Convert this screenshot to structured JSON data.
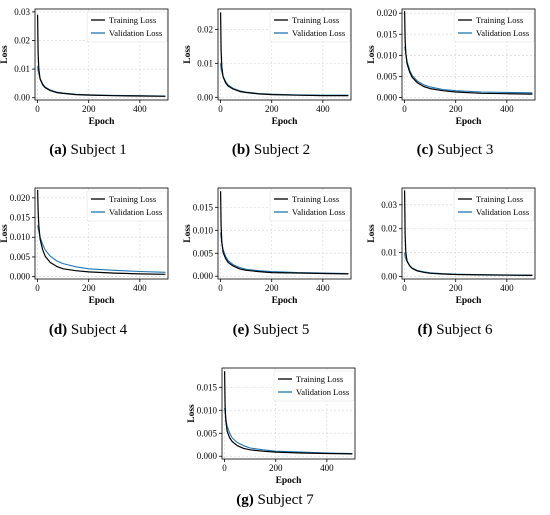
{
  "chart_data": [
    {
      "type": "line",
      "caption_label": "(a)",
      "caption_text": " Subject 1",
      "xlabel": "Epoch",
      "ylabel": "Loss",
      "xlim": [
        -10,
        510
      ],
      "ylim": [
        -0.0008,
        0.031
      ],
      "xticks": [
        "0",
        "200",
        "400"
      ],
      "xtick_values": [
        0,
        200,
        400
      ],
      "yticks": [
        "0.00",
        "0.01",
        "0.02",
        "0.03"
      ],
      "ytick_values": [
        0,
        0.01,
        0.02,
        0.03
      ],
      "grid": true,
      "legend": "top-right",
      "series": [
        {
          "name": "Training Loss",
          "color": "#000000",
          "x": [
            0,
            2,
            5,
            10,
            20,
            30,
            50,
            75,
            100,
            150,
            200,
            300,
            400,
            500
          ],
          "y": [
            0.029,
            0.016,
            0.01,
            0.0065,
            0.0045,
            0.0035,
            0.0025,
            0.0018,
            0.0015,
            0.0011,
            0.0009,
            0.0007,
            0.0006,
            0.0005
          ]
        },
        {
          "name": "Validation Loss",
          "color": "#1f77b4",
          "x": [
            0,
            2,
            5,
            10,
            20,
            30,
            50,
            75,
            100,
            150,
            200,
            300,
            400,
            500
          ],
          "y": [
            0.011,
            0.0095,
            0.0085,
            0.0068,
            0.0048,
            0.0037,
            0.0027,
            0.002,
            0.0016,
            0.0012,
            0.001,
            0.0008,
            0.0007,
            0.0006
          ]
        }
      ]
    },
    {
      "type": "line",
      "caption_label": "(b)",
      "caption_text": " Subject 2",
      "xlabel": "Epoch",
      "ylabel": "Loss",
      "xlim": [
        -10,
        510
      ],
      "ylim": [
        -0.0008,
        0.026
      ],
      "xticks": [
        "0",
        "200",
        "400"
      ],
      "xtick_values": [
        0,
        200,
        400
      ],
      "yticks": [
        "0.00",
        "0.01",
        "0.02"
      ],
      "ytick_values": [
        0,
        0.01,
        0.02
      ],
      "grid": true,
      "legend": "top-right",
      "series": [
        {
          "name": "Training Loss",
          "color": "#000000",
          "x": [
            0,
            2,
            5,
            10,
            20,
            30,
            50,
            75,
            100,
            150,
            200,
            300,
            400,
            500
          ],
          "y": [
            0.025,
            0.014,
            0.009,
            0.006,
            0.0042,
            0.0033,
            0.0024,
            0.0017,
            0.0014,
            0.001,
            0.0008,
            0.0006,
            0.0005,
            0.0005
          ]
        },
        {
          "name": "Validation Loss",
          "color": "#1f77b4",
          "x": [
            0,
            2,
            5,
            10,
            20,
            30,
            50,
            75,
            100,
            150,
            200,
            300,
            400,
            500
          ],
          "y": [
            0.01,
            0.0085,
            0.0075,
            0.0062,
            0.0046,
            0.0036,
            0.0026,
            0.0019,
            0.0015,
            0.0011,
            0.0009,
            0.0007,
            0.0006,
            0.0006
          ]
        }
      ]
    },
    {
      "type": "line",
      "caption_label": "(c)",
      "caption_text": " Subject 3",
      "xlabel": "Epoch",
      "ylabel": "Loss",
      "xlim": [
        -10,
        510
      ],
      "ylim": [
        -0.0006,
        0.021
      ],
      "xticks": [
        "0",
        "200",
        "400"
      ],
      "xtick_values": [
        0,
        200,
        400
      ],
      "yticks": [
        "0.000",
        "0.005",
        "0.010",
        "0.015",
        "0.020"
      ],
      "ytick_values": [
        0,
        0.005,
        0.01,
        0.015,
        0.02
      ],
      "grid": true,
      "legend": "top-right",
      "series": [
        {
          "name": "Training Loss",
          "color": "#000000",
          "x": [
            0,
            2,
            5,
            10,
            20,
            30,
            50,
            75,
            100,
            150,
            200,
            300,
            400,
            500
          ],
          "y": [
            0.0205,
            0.014,
            0.0105,
            0.008,
            0.006,
            0.0048,
            0.0035,
            0.0026,
            0.0021,
            0.0016,
            0.0013,
            0.001,
            0.0009,
            0.0008
          ]
        },
        {
          "name": "Validation Loss",
          "color": "#1f77b4",
          "x": [
            0,
            2,
            5,
            10,
            20,
            30,
            50,
            75,
            100,
            150,
            200,
            300,
            400,
            500
          ],
          "y": [
            0.012,
            0.0115,
            0.0105,
            0.0085,
            0.0065,
            0.0052,
            0.0039,
            0.003,
            0.0025,
            0.0019,
            0.0016,
            0.0013,
            0.0012,
            0.0011
          ]
        }
      ]
    },
    {
      "type": "line",
      "caption_label": "(d)",
      "caption_text": " Subject 4",
      "xlabel": "Epoch",
      "ylabel": "Loss",
      "xlim": [
        -10,
        510
      ],
      "ylim": [
        -0.0006,
        0.0225
      ],
      "xticks": [
        "0",
        "200",
        "400"
      ],
      "xtick_values": [
        0,
        200,
        400
      ],
      "yticks": [
        "0.000",
        "0.005",
        "0.010",
        "0.015",
        "0.020"
      ],
      "ytick_values": [
        0,
        0.005,
        0.01,
        0.015,
        0.02
      ],
      "grid": true,
      "legend": "top-right",
      "series": [
        {
          "name": "Training Loss",
          "color": "#000000",
          "x": [
            0,
            2,
            5,
            10,
            20,
            30,
            50,
            75,
            100,
            150,
            200,
            300,
            400,
            500
          ],
          "y": [
            0.022,
            0.017,
            0.013,
            0.0095,
            0.0068,
            0.0052,
            0.0036,
            0.0026,
            0.002,
            0.0015,
            0.0012,
            0.0009,
            0.0007,
            0.0006
          ]
        },
        {
          "name": "Validation Loss",
          "color": "#1f77b4",
          "x": [
            0,
            2,
            5,
            10,
            20,
            30,
            50,
            75,
            100,
            150,
            200,
            300,
            400,
            500
          ],
          "y": [
            0.013,
            0.0125,
            0.0115,
            0.01,
            0.0082,
            0.0068,
            0.0052,
            0.004,
            0.0033,
            0.0025,
            0.002,
            0.0016,
            0.0013,
            0.0011
          ]
        }
      ]
    },
    {
      "type": "line",
      "caption_label": "(e)",
      "caption_text": " Subject 5",
      "xlabel": "Epoch",
      "ylabel": "Loss",
      "xlim": [
        -10,
        510
      ],
      "ylim": [
        -0.0006,
        0.0192
      ],
      "xticks": [
        "0",
        "200",
        "400"
      ],
      "xtick_values": [
        0,
        200,
        400
      ],
      "yticks": [
        "0.000",
        "0.005",
        "0.010",
        "0.015"
      ],
      "ytick_values": [
        0,
        0.005,
        0.01,
        0.015
      ],
      "grid": true,
      "legend": "top-right",
      "series": [
        {
          "name": "Training Loss",
          "color": "#000000",
          "x": [
            0,
            2,
            5,
            10,
            20,
            30,
            50,
            75,
            100,
            150,
            200,
            300,
            400,
            500
          ],
          "y": [
            0.0185,
            0.011,
            0.0075,
            0.0052,
            0.0038,
            0.003,
            0.0022,
            0.0016,
            0.0013,
            0.001,
            0.0008,
            0.0007,
            0.0006,
            0.0005
          ]
        },
        {
          "name": "Validation Loss",
          "color": "#1f77b4",
          "x": [
            0,
            2,
            5,
            10,
            20,
            30,
            50,
            75,
            100,
            150,
            200,
            300,
            400,
            500
          ],
          "y": [
            0.0095,
            0.0085,
            0.0072,
            0.0058,
            0.0043,
            0.0034,
            0.0025,
            0.0019,
            0.0015,
            0.0012,
            0.001,
            0.0008,
            0.0007,
            0.0006
          ]
        }
      ]
    },
    {
      "type": "line",
      "caption_label": "(f)",
      "caption_text": " Subject 6",
      "xlabel": "Epoch",
      "ylabel": "Loss",
      "xlim": [
        -10,
        510
      ],
      "ylim": [
        -0.001,
        0.037
      ],
      "xticks": [
        "0",
        "200",
        "400"
      ],
      "xtick_values": [
        0,
        200,
        400
      ],
      "yticks": [
        "0.00",
        "0.01",
        "0.02",
        "0.03"
      ],
      "ytick_values": [
        0,
        0.01,
        0.02,
        0.03
      ],
      "grid": true,
      "legend": "top-right",
      "series": [
        {
          "name": "Training Loss",
          "color": "#000000",
          "x": [
            0,
            2,
            5,
            10,
            20,
            30,
            50,
            75,
            100,
            150,
            200,
            300,
            400,
            500
          ],
          "y": [
            0.036,
            0.018,
            0.01,
            0.0065,
            0.0045,
            0.0034,
            0.0024,
            0.0018,
            0.0014,
            0.0011,
            0.0009,
            0.0007,
            0.0006,
            0.0005
          ]
        },
        {
          "name": "Validation Loss",
          "color": "#1f77b4",
          "x": [
            0,
            2,
            5,
            10,
            20,
            30,
            50,
            75,
            100,
            150,
            200,
            300,
            400,
            500
          ],
          "y": [
            0.01,
            0.0085,
            0.0075,
            0.0062,
            0.0046,
            0.0036,
            0.0026,
            0.002,
            0.0016,
            0.0012,
            0.001,
            0.0008,
            0.0007,
            0.0006
          ]
        }
      ]
    },
    {
      "type": "line",
      "caption_label": "(g)",
      "caption_text": " Subject 7",
      "xlabel": "Epoch",
      "ylabel": "Loss",
      "xlim": [
        -10,
        510
      ],
      "ylim": [
        -0.0006,
        0.0192
      ],
      "xticks": [
        "0",
        "200",
        "400"
      ],
      "xtick_values": [
        0,
        200,
        400
      ],
      "yticks": [
        "0.000",
        "0.005",
        "0.010",
        "0.015"
      ],
      "ytick_values": [
        0,
        0.005,
        0.01,
        0.015
      ],
      "grid": true,
      "legend": "top-right",
      "series": [
        {
          "name": "Training Loss",
          "color": "#000000",
          "x": [
            0,
            2,
            5,
            10,
            20,
            30,
            50,
            75,
            100,
            150,
            200,
            300,
            400,
            500
          ],
          "y": [
            0.0185,
            0.011,
            0.0078,
            0.0055,
            0.004,
            0.0032,
            0.0023,
            0.0017,
            0.0014,
            0.0011,
            0.0009,
            0.0007,
            0.0006,
            0.0005
          ]
        },
        {
          "name": "Validation Loss",
          "color": "#1f77b4",
          "x": [
            0,
            2,
            5,
            10,
            20,
            30,
            50,
            75,
            100,
            150,
            200,
            300,
            400,
            500
          ],
          "y": [
            0.0105,
            0.0095,
            0.0082,
            0.0066,
            0.005,
            0.004,
            0.003,
            0.0023,
            0.0018,
            0.0014,
            0.0011,
            0.0009,
            0.0007,
            0.0006
          ]
        }
      ]
    }
  ]
}
